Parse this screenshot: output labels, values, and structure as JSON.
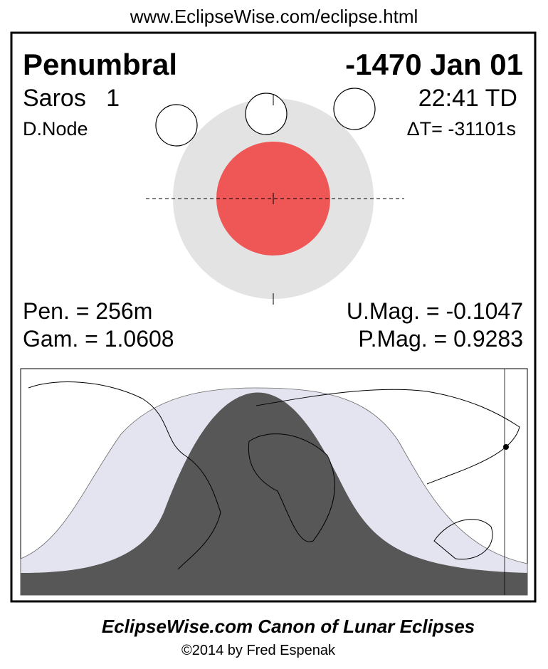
{
  "header": {
    "url": "www.EclipseWise.com/eclipse.html"
  },
  "eclipse": {
    "type": "Penumbral",
    "date": "-1470 Jan 01",
    "saros": "Saros   1",
    "time": "22:41 TD",
    "node": "D.Node",
    "delta_t": "ΔT= -31101s"
  },
  "stats": {
    "pen": "Pen. = 256m",
    "umag": "U.Mag. = -0.1047",
    "gam": "Gam. = 1.0608",
    "pmag": "P.Mag. = 0.9283"
  },
  "footer": {
    "title": "EclipseWise.com Canon of Lunar Eclipses",
    "credit": "©2014 by Fred Espenak"
  }
}
